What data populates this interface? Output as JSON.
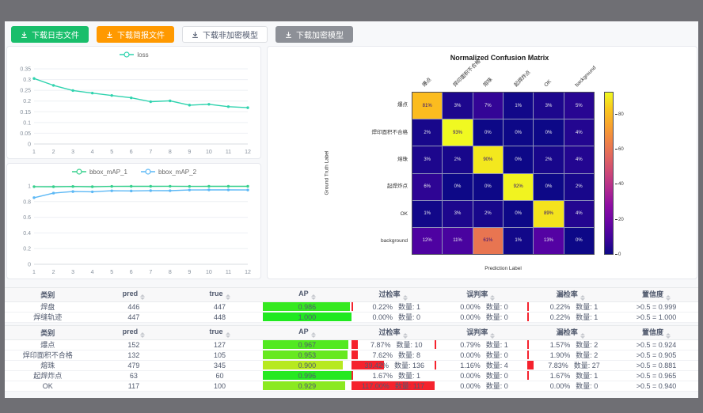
{
  "toolbar": {
    "buttons": [
      {
        "label": "下载日志文件",
        "style": "green"
      },
      {
        "label": "下载简报文件",
        "style": "orange"
      },
      {
        "label": "下载非加密模型",
        "style": "plain"
      },
      {
        "label": "下载加密模型",
        "style": "gray"
      }
    ]
  },
  "colors": {
    "green_btn": "#19be6b",
    "orange_btn": "#ff9900",
    "gray_btn": "#8d9097",
    "loss_line": "#2fd3ae",
    "map1_line": "#35d08c",
    "map2_line": "#5cb8f5",
    "rate_bar_red": "#f5222d"
  },
  "chart_data": [
    {
      "type": "line",
      "title": "",
      "x": [
        1,
        2,
        3,
        4,
        5,
        6,
        7,
        8,
        9,
        10,
        11,
        12
      ],
      "series": [
        {
          "name": "loss",
          "color": "#2fd3ae",
          "values": [
            0.305,
            0.273,
            0.249,
            0.237,
            0.226,
            0.215,
            0.197,
            0.201,
            0.181,
            0.185,
            0.174,
            0.169
          ]
        }
      ],
      "ylim": [
        0,
        0.35
      ],
      "yticks": [
        0,
        0.05,
        0.1,
        0.15,
        0.2,
        0.25,
        0.3,
        0.35
      ],
      "legend_position": "top",
      "grid": true
    },
    {
      "type": "line",
      "title": "",
      "x": [
        1,
        2,
        3,
        4,
        5,
        6,
        7,
        8,
        9,
        10,
        11,
        12
      ],
      "series": [
        {
          "name": "bbox_mAP_1",
          "color": "#35d08c",
          "values": [
            0.991,
            0.99,
            0.993,
            0.99,
            0.994,
            0.995,
            0.995,
            0.996,
            0.994,
            0.995,
            0.995,
            0.995
          ]
        },
        {
          "name": "bbox_mAP_2",
          "color": "#5cb8f5",
          "values": [
            0.85,
            0.908,
            0.928,
            0.925,
            0.938,
            0.936,
            0.94,
            0.939,
            0.948,
            0.95,
            0.949,
            0.948
          ]
        }
      ],
      "ylim": [
        0,
        1
      ],
      "yticks": [
        0,
        0.2,
        0.4,
        0.6,
        0.8,
        1
      ],
      "legend_position": "top",
      "grid": true
    },
    {
      "type": "heatmap",
      "title": "Normalized Confusion Matrix",
      "xlabel": "Prediction Label",
      "ylabel": "Ground Truth Label",
      "labels": [
        "爆点",
        "焊印面积不合格",
        "熔珠",
        "起焊炸点",
        "OK",
        "background"
      ],
      "matrix": [
        [
          81,
          3,
          7,
          1,
          3,
          5
        ],
        [
          2,
          93,
          0,
          0,
          0,
          4
        ],
        [
          3,
          2,
          90,
          0,
          2,
          4
        ],
        [
          6,
          0,
          0,
          92,
          0,
          2
        ],
        [
          1,
          3,
          2,
          0,
          89,
          4
        ],
        [
          12,
          11,
          61,
          1,
          13,
          0
        ]
      ],
      "unit": "%",
      "vmax": 93,
      "colorbar_ticks": [
        0,
        20,
        40,
        60,
        80
      ],
      "colormap": "plasma"
    }
  ],
  "tables": [
    {
      "headers": [
        "类别",
        "pred",
        "true",
        "AP",
        "过检率",
        "误判率",
        "漏检率",
        "置信度"
      ],
      "rows": [
        {
          "label": "焊盘",
          "pred": "446",
          "true": "447",
          "ap": "0.986",
          "over": {
            "pct": "0.22%",
            "cnt": "数量: 1",
            "w": 0.22
          },
          "mis": {
            "pct": "0.00%",
            "cnt": "数量: 0",
            "w": 0
          },
          "miss": {
            "pct": "0.22%",
            "cnt": "数量: 1",
            "w": 0.22
          },
          "conf": ">0.5 = 0.999"
        },
        {
          "label": "焊缝轨迹",
          "pred": "447",
          "true": "448",
          "ap": "1.000",
          "over": {
            "pct": "0.00%",
            "cnt": "数量: 0",
            "w": 0
          },
          "mis": {
            "pct": "0.00%",
            "cnt": "数量: 0",
            "w": 0
          },
          "miss": {
            "pct": "0.22%",
            "cnt": "数量: 1",
            "w": 0.22
          },
          "conf": ">0.5 = 1.000"
        }
      ]
    },
    {
      "headers": [
        "类别",
        "pred",
        "true",
        "AP",
        "过检率",
        "误判率",
        "漏检率",
        "置信度"
      ],
      "rows": [
        {
          "label": "爆点",
          "pred": "152",
          "true": "127",
          "ap": "0.967",
          "over": {
            "pct": "7.87%",
            "cnt": "数量: 10",
            "w": 7.87
          },
          "mis": {
            "pct": "0.79%",
            "cnt": "数量: 1",
            "w": 0.79
          },
          "miss": {
            "pct": "1.57%",
            "cnt": "数量: 2",
            "w": 1.57
          },
          "conf": ">0.5 = 0.924"
        },
        {
          "label": "焊印面积不合格",
          "pred": "132",
          "true": "105",
          "ap": "0.953",
          "over": {
            "pct": "7.62%",
            "cnt": "数量: 8",
            "w": 7.62
          },
          "mis": {
            "pct": "0.00%",
            "cnt": "数量: 0",
            "w": 0
          },
          "miss": {
            "pct": "1.90%",
            "cnt": "数量: 2",
            "w": 1.9
          },
          "conf": ">0.5 = 0.905"
        },
        {
          "label": "熔珠",
          "pred": "479",
          "true": "345",
          "ap": "0.900",
          "over": {
            "pct": "39.42%",
            "cnt": "数量: 136",
            "w": 39.42
          },
          "mis": {
            "pct": "1.16%",
            "cnt": "数量: 4",
            "w": 1.16
          },
          "miss": {
            "pct": "7.83%",
            "cnt": "数量: 27",
            "w": 7.83
          },
          "conf": ">0.5 = 0.881"
        },
        {
          "label": "起焊炸点",
          "pred": "63",
          "true": "60",
          "ap": "0.996",
          "over": {
            "pct": "1.67%",
            "cnt": "数量: 1",
            "w": 1.67
          },
          "mis": {
            "pct": "0.00%",
            "cnt": "数量: 0",
            "w": 0
          },
          "miss": {
            "pct": "1.67%",
            "cnt": "数量: 1",
            "w": 1.67
          },
          "conf": ">0.5 = 0.965"
        },
        {
          "label": "OK",
          "pred": "117",
          "true": "100",
          "ap": "0.929",
          "over": {
            "pct": "117.00%",
            "cnt": "数量: 117",
            "w": 117
          },
          "mis": {
            "pct": "0.00%",
            "cnt": "数量: 0",
            "w": 0
          },
          "miss": {
            "pct": "0.00%",
            "cnt": "数量: 0",
            "w": 0
          },
          "conf": ">0.5 = 0.940"
        }
      ]
    }
  ]
}
